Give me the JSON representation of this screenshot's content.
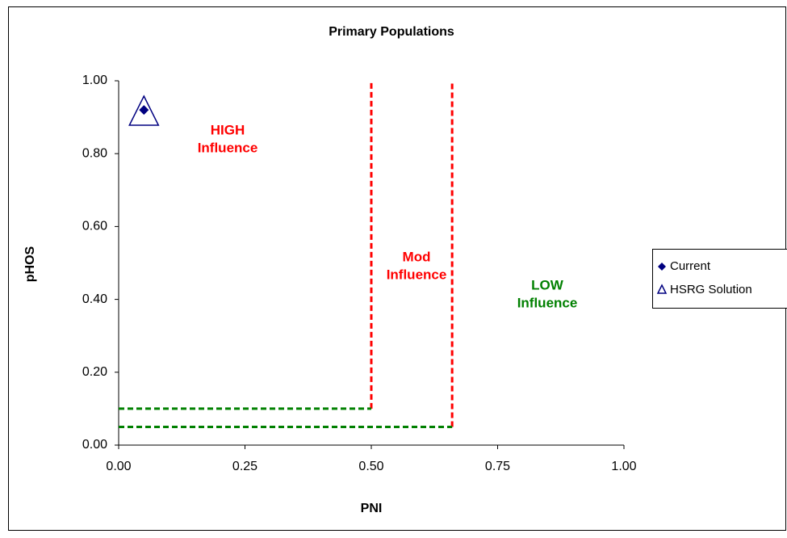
{
  "chart_data": {
    "type": "scatter",
    "title": "Primary Populations",
    "x_label": "PNI",
    "y_label": "pHOS",
    "xlim": [
      0,
      1
    ],
    "ylim": [
      0,
      1
    ],
    "xticks": [
      {
        "value": 0,
        "label": "0.00"
      },
      {
        "value": 0.25,
        "label": "0.25"
      },
      {
        "value": 0.5,
        "label": "0.50"
      },
      {
        "value": 0.75,
        "label": "0.75"
      },
      {
        "value": 1,
        "label": "1.00"
      }
    ],
    "yticks": [
      {
        "value": 0,
        "label": "0.00"
      },
      {
        "value": 0.2,
        "label": "0.20"
      },
      {
        "value": 0.4,
        "label": "0.40"
      },
      {
        "value": 0.6,
        "label": "0.60"
      },
      {
        "value": 0.8,
        "label": "0.80"
      },
      {
        "value": 1,
        "label": "1.00"
      }
    ],
    "series": [
      {
        "name": "Current",
        "marker": "diamond",
        "color": "#000080",
        "x": [
          0.05
        ],
        "values": [
          0.92
        ]
      },
      {
        "name": "HSRG Solution",
        "marker": "triangle",
        "color": "#000080",
        "x": [
          0.05
        ],
        "values": [
          0.91
        ]
      }
    ],
    "reference_lines": [
      {
        "color": "#ff0000",
        "x": [
          0.5,
          0.5
        ],
        "y": [
          0.1,
          1.0
        ]
      },
      {
        "color": "#ff0000",
        "x": [
          0.66,
          0.66
        ],
        "y": [
          0.05,
          1.0
        ]
      },
      {
        "color": "#008000",
        "x": [
          0,
          0.5
        ],
        "y": [
          0.1,
          0.1
        ]
      },
      {
        "color": "#008000",
        "x": [
          0,
          0.66
        ],
        "y": [
          0.05,
          0.05
        ]
      }
    ],
    "annotations": [
      {
        "lines": [
          "HIGH",
          "Influence"
        ],
        "color": "#ff0000"
      },
      {
        "lines": [
          "Mod",
          "Influence"
        ],
        "color": "#ff0000"
      },
      {
        "lines": [
          "LOW",
          "Influence"
        ],
        "color": "#008000"
      }
    ],
    "legend": "right"
  }
}
